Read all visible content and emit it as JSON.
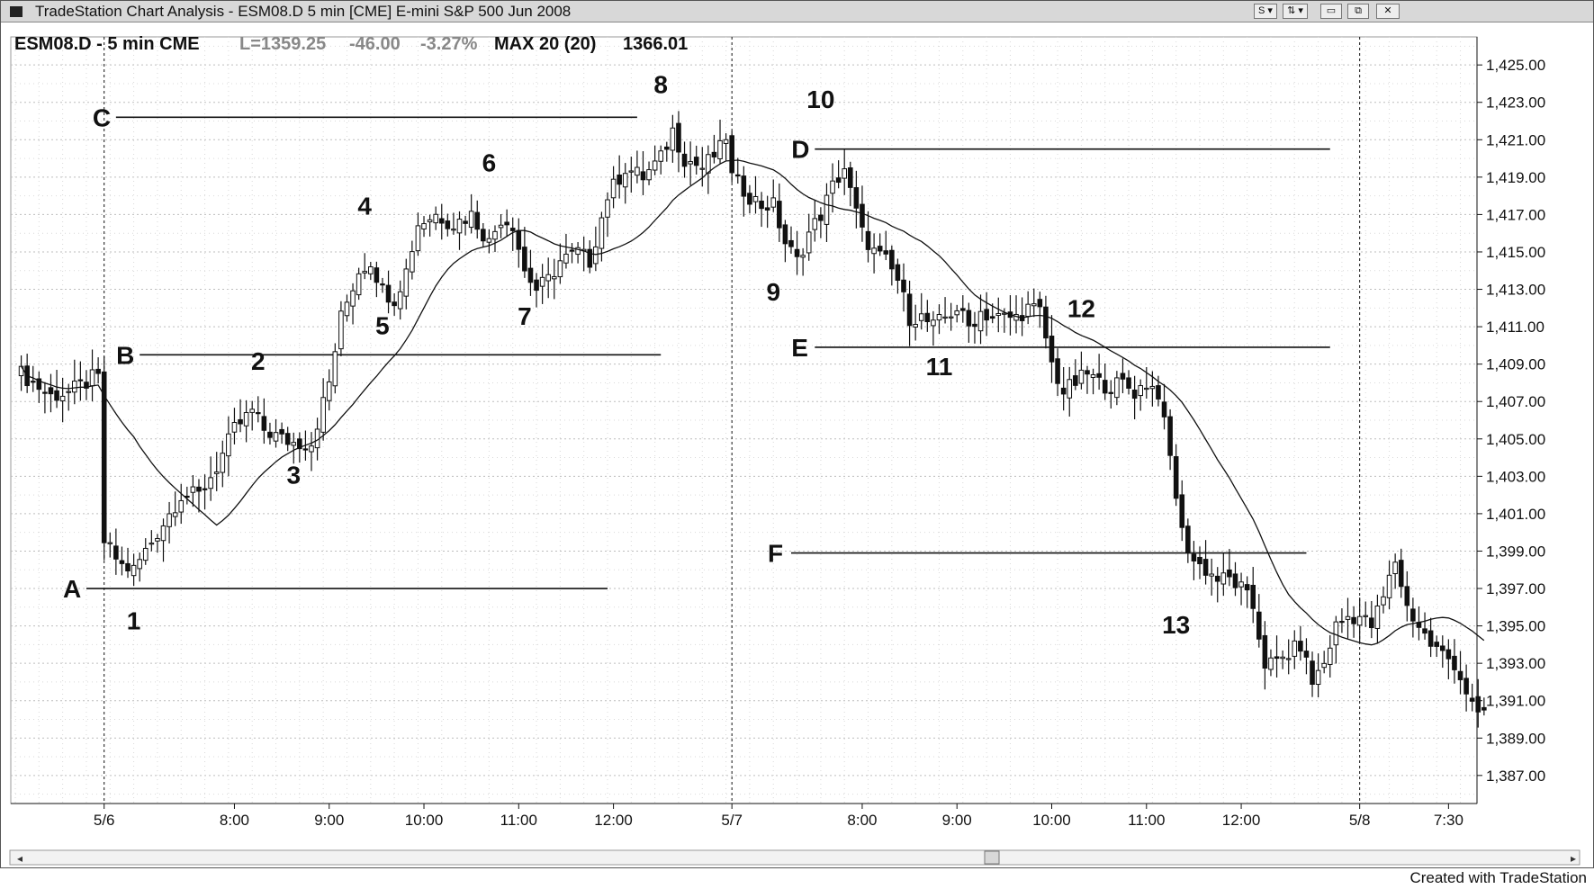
{
  "window": {
    "title": "TradeStation Chart Analysis - ESM08.D 5 min [CME] E-mini S&P 500 Jun 2008",
    "buttons": {
      "s": "S ▾",
      "icon": "⇅ ▾",
      "minimize": "▭",
      "restore": "⧉",
      "close": "✕"
    }
  },
  "header": {
    "symbol": "ESM08.D - 5 min CME",
    "last": "L=1359.25",
    "change": "-46.00",
    "pct": "-3.27%",
    "indicator": "MAX 20 (20)",
    "indicator_value": "1366.01"
  },
  "credit": "Created with TradeStation",
  "colors": {
    "ink": "#111111",
    "grid": "#bdbdbd",
    "muted": "#888888",
    "bg": "#ffffff"
  },
  "chart_data": {
    "type": "candlestick",
    "y_ticks": [
      "1,425.00",
      "1,423.00",
      "1,421.00",
      "1,419.00",
      "1,417.00",
      "1,415.00",
      "1,413.00",
      "1,411.00",
      "1,409.00",
      "1,407.00",
      "1,405.00",
      "1,403.00",
      "1,401.00",
      "1,399.00",
      "1,397.00",
      "1,395.00",
      "1,393.00",
      "1,391.00",
      "1,389.00",
      "1,387.00"
    ],
    "ylim": [
      1385.5,
      1426.5
    ],
    "x_ticks": [
      {
        "label": "5/6",
        "bar": 15,
        "session_start": true
      },
      {
        "label": "8:00",
        "bar": 37
      },
      {
        "label": "9:00",
        "bar": 53
      },
      {
        "label": "10:00",
        "bar": 69
      },
      {
        "label": "11:00",
        "bar": 85
      },
      {
        "label": "12:00",
        "bar": 101
      },
      {
        "label": "5/7",
        "bar": 121,
        "session_start": true
      },
      {
        "label": "8:00",
        "bar": 143
      },
      {
        "label": "9:00",
        "bar": 159
      },
      {
        "label": "10:00",
        "bar": 175
      },
      {
        "label": "11:00",
        "bar": 191
      },
      {
        "label": "12:00",
        "bar": 207
      },
      {
        "label": "5/8",
        "bar": 227,
        "session_start": true
      },
      {
        "label": "7:30",
        "bar": 242
      }
    ],
    "pivot_points": [
      {
        "value": 1408.5,
        "points": [
          [
            1,
            1408.5
          ],
          [
            3,
            1408
          ],
          [
            6,
            1407.3
          ],
          [
            9,
            1407.5
          ],
          [
            12,
            1408
          ],
          [
            14,
            1408.5
          ]
        ]
      },
      {
        "note": "day1",
        "points": [
          [
            15,
            1399.5
          ],
          [
            18,
            1398.2
          ],
          [
            20,
            1398
          ],
          [
            23,
            1399.5
          ],
          [
            26,
            1401
          ],
          [
            28,
            1402
          ],
          [
            31,
            1402
          ],
          [
            34,
            1403.5
          ],
          [
            37,
            1405.5
          ],
          [
            40,
            1406.5
          ],
          [
            42,
            1405.5
          ],
          [
            45,
            1405
          ],
          [
            47,
            1404.8
          ],
          [
            50,
            1404.8
          ],
          [
            53,
            1408
          ],
          [
            55,
            1411.5
          ],
          [
            58,
            1414
          ],
          [
            60,
            1414.5
          ],
          [
            62,
            1413
          ],
          [
            64,
            1412.5
          ],
          [
            66,
            1414
          ],
          [
            68,
            1416.5
          ],
          [
            71,
            1417
          ],
          [
            74,
            1416.5
          ],
          [
            77,
            1417
          ],
          [
            80,
            1415.5
          ],
          [
            82,
            1416.8
          ],
          [
            84,
            1416.5
          ],
          [
            86,
            1414
          ],
          [
            88,
            1413
          ],
          [
            90,
            1413.5
          ],
          [
            92,
            1414.5
          ],
          [
            95,
            1415
          ],
          [
            97,
            1414.5
          ],
          [
            100,
            1418
          ],
          [
            103,
            1419.5
          ],
          [
            106,
            1419
          ],
          [
            109,
            1420
          ],
          [
            111,
            1421.5
          ],
          [
            113,
            1420
          ],
          [
            116,
            1419.5
          ],
          [
            119,
            1420.5
          ],
          [
            120,
            1421
          ]
        ]
      },
      {
        "note": "day2",
        "points": [
          [
            121,
            1419
          ],
          [
            124,
            1418
          ],
          [
            126,
            1417.5
          ],
          [
            128,
            1417.5
          ],
          [
            130,
            1415.5
          ],
          [
            132,
            1414.5
          ],
          [
            134,
            1416
          ],
          [
            136,
            1417
          ],
          [
            138,
            1418.5
          ],
          [
            140,
            1419.5
          ],
          [
            141,
            1418.2
          ],
          [
            143,
            1416
          ],
          [
            145,
            1415
          ],
          [
            147,
            1414.5
          ],
          [
            149,
            1413.5
          ],
          [
            151,
            1411.5
          ],
          [
            153,
            1411.5
          ],
          [
            155,
            1411
          ],
          [
            157,
            1411.5
          ],
          [
            159,
            1412
          ],
          [
            161,
            1411
          ],
          [
            163,
            1411.8
          ],
          [
            165,
            1411.5
          ],
          [
            167,
            1411.5
          ],
          [
            169,
            1411.5
          ],
          [
            171,
            1412
          ],
          [
            173,
            1411.8
          ],
          [
            175,
            1409
          ],
          [
            177,
            1407.5
          ],
          [
            179,
            1408
          ],
          [
            181,
            1408.5
          ],
          [
            183,
            1408
          ],
          [
            185,
            1407.8
          ],
          [
            187,
            1408
          ],
          [
            189,
            1407.5
          ],
          [
            191,
            1408
          ],
          [
            193,
            1407.5
          ],
          [
            195,
            1404
          ],
          [
            197,
            1400
          ],
          [
            199,
            1398.5
          ],
          [
            201,
            1398
          ],
          [
            203,
            1397.5
          ],
          [
            205,
            1397.5
          ],
          [
            207,
            1397
          ],
          [
            209,
            1396
          ],
          [
            211,
            1393
          ],
          [
            213,
            1393
          ],
          [
            215,
            1393.5
          ],
          [
            217,
            1394
          ],
          [
            219,
            1392
          ],
          [
            221,
            1393
          ],
          [
            223,
            1395
          ],
          [
            225,
            1395.5
          ],
          [
            227,
            1395.5
          ],
          [
            229,
            1395
          ],
          [
            231,
            1396.5
          ],
          [
            233,
            1398.5
          ],
          [
            235,
            1396
          ],
          [
            237,
            1395
          ],
          [
            239,
            1394
          ],
          [
            241,
            1393.5
          ],
          [
            243,
            1393
          ],
          [
            245,
            1391.5
          ],
          [
            247,
            1390
          ],
          [
            248,
            1390.5
          ]
        ]
      }
    ],
    "sma_note": "20-period average of closes",
    "levels": [
      {
        "label": "A",
        "price": 1397.0,
        "from_bar": 12,
        "to_bar": 100
      },
      {
        "label": "B",
        "price": 1409.5,
        "from_bar": 21,
        "to_bar": 109
      },
      {
        "label": "C",
        "price": 1422.2,
        "from_bar": 17,
        "to_bar": 105
      },
      {
        "label": "D",
        "price": 1420.5,
        "from_bar": 135,
        "to_bar": 222
      },
      {
        "label": "E",
        "price": 1409.9,
        "from_bar": 135,
        "to_bar": 222
      },
      {
        "label": "F",
        "price": 1398.9,
        "from_bar": 131,
        "to_bar": 218
      }
    ],
    "annotations": [
      {
        "text": "1",
        "bar": 20,
        "price": 1394.8
      },
      {
        "text": "2",
        "bar": 41,
        "price": 1408.7
      },
      {
        "text": "3",
        "bar": 47,
        "price": 1402.6
      },
      {
        "text": "4",
        "bar": 59,
        "price": 1417.0
      },
      {
        "text": "5",
        "bar": 62,
        "price": 1410.6
      },
      {
        "text": "6",
        "bar": 80,
        "price": 1419.3
      },
      {
        "text": "7",
        "bar": 86,
        "price": 1411.1
      },
      {
        "text": "8",
        "bar": 109,
        "price": 1423.5
      },
      {
        "text": "9",
        "bar": 128,
        "price": 1412.4
      },
      {
        "text": "10",
        "bar": 136,
        "price": 1422.7
      },
      {
        "text": "11",
        "bar": 156,
        "price": 1408.4
      },
      {
        "text": "12",
        "bar": 180,
        "price": 1411.5
      },
      {
        "text": "13",
        "bar": 196,
        "price": 1394.6
      }
    ]
  }
}
